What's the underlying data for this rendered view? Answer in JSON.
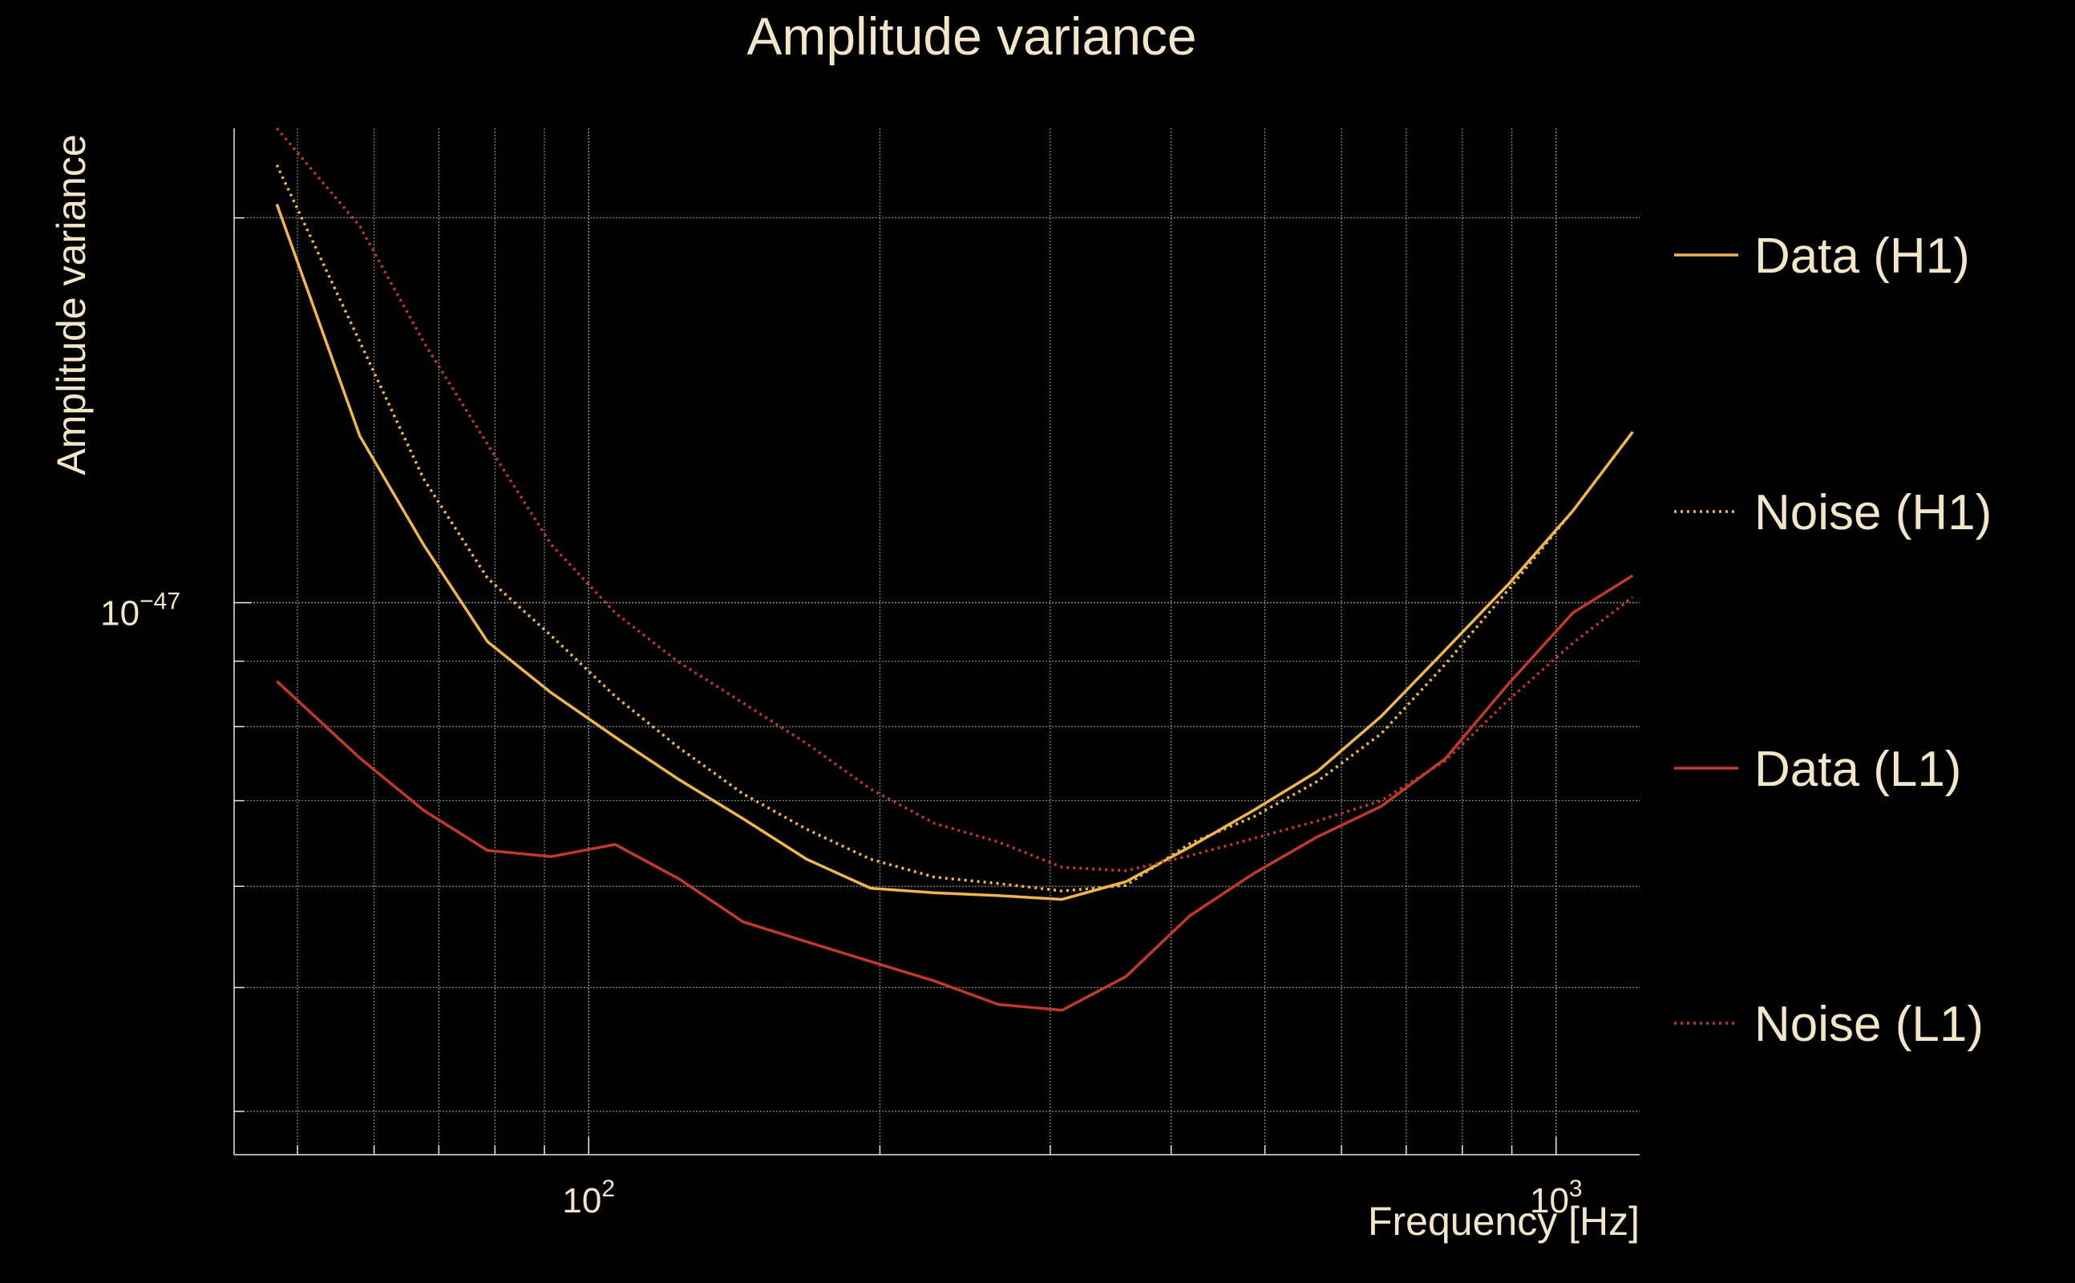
{
  "chart_data": {
    "type": "line",
    "title": "Amplitude variance",
    "xlabel": "Frequency [Hz]",
    "ylabel": "Amplitude variance",
    "x_scale": "log",
    "y_scale": "log",
    "xlim": [
      43,
      1220
    ],
    "ylim": [
      3.7e-48,
      2.35e-47
    ],
    "x_ticks": [
      {
        "value": 100,
        "base": "10",
        "exp": "2"
      },
      {
        "value": 1000,
        "base": "10",
        "exp": "3"
      }
    ],
    "y_ticks": [
      {
        "value": 1e-47,
        "base": "10",
        "exp": "−47"
      }
    ],
    "grid": true,
    "legend_position": "right",
    "background": "#000000",
    "text_color": "#f3e5c8",
    "grid_color": "#8a8a8a",
    "x": [
      47.6,
      58.0,
      67.5,
      78.6,
      91.5,
      106.5,
      124.0,
      144.3,
      168.0,
      195.6,
      227.7,
      265.1,
      308.6,
      359.2,
      418.2,
      486.8,
      566.7,
      659.7,
      768.0,
      894.1,
      1040.8,
      1200.0
    ],
    "series": [
      {
        "name": "Data (H1)",
        "color": "#f0b64a",
        "dash": "solid",
        "values": [
          2.05e-47,
          1.35e-47,
          1.11e-47,
          9.32e-48,
          8.5e-48,
          7.85e-48,
          7.27e-48,
          6.78e-48,
          6.3e-48,
          5.98e-48,
          5.93e-48,
          5.9e-48,
          5.86e-48,
          6.05e-48,
          6.44e-48,
          6.88e-48,
          7.38e-48,
          8.15e-48,
          9.18e-48,
          1.035e-47,
          1.18e-47,
          1.36e-47
        ]
      },
      {
        "name": "Noise (H1)",
        "color": "#f0b64a",
        "dash": "dotted",
        "values": [
          2.2e-47,
          1.6e-47,
          1.25e-47,
          1.045e-47,
          9.42e-48,
          8.45e-48,
          7.7e-48,
          7.09e-48,
          6.65e-48,
          6.3e-48,
          6.1e-48,
          6.03e-48,
          5.95e-48,
          6.01e-48,
          6.48e-48,
          6.8e-48,
          7.25e-48,
          7.9e-48,
          8.95e-48,
          1.025e-47,
          1.18e-47,
          1.36e-47
        ]
      },
      {
        "name": "Data (L1)",
        "color": "#c0392b",
        "dash": "solid",
        "values": [
          8.68e-48,
          7.56e-48,
          6.88e-48,
          6.4e-48,
          6.33e-48,
          6.47e-48,
          6.08e-48,
          5.63e-48,
          5.43e-48,
          5.24e-48,
          5.06e-48,
          4.85e-48,
          4.8e-48,
          5.1e-48,
          5.69e-48,
          6.14e-48,
          6.56e-48,
          6.93e-48,
          7.55e-48,
          8.65e-48,
          9.82e-48,
          1.05e-47
        ]
      },
      {
        "name": "Noise (L1)",
        "color": "#c0392b",
        "dash": "dotted",
        "values": [
          2.35e-47,
          1.97e-47,
          1.6e-47,
          1.33e-47,
          1.11e-47,
          9.82e-48,
          8.98e-48,
          8.35e-48,
          7.76e-48,
          7.15e-48,
          6.72e-48,
          6.5e-48,
          6.21e-48,
          6.17e-48,
          6.34e-48,
          6.54e-48,
          6.75e-48,
          7e-48,
          7.52e-48,
          8.4e-48,
          9.3e-48,
          1.01e-47
        ]
      }
    ]
  }
}
